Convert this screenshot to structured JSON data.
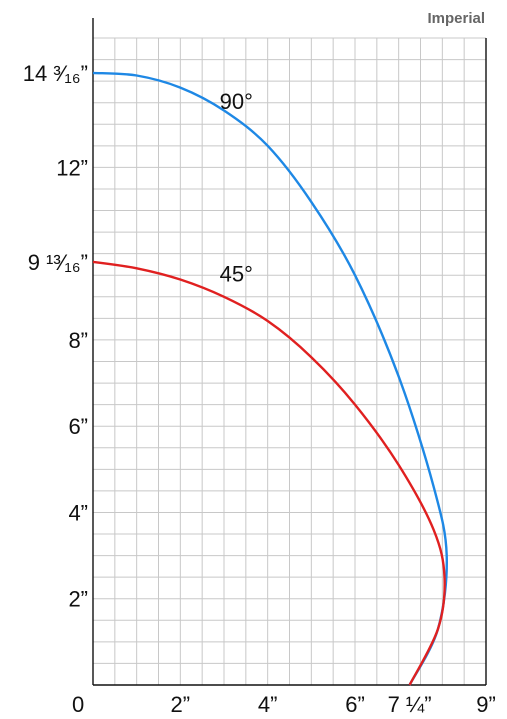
{
  "badge": "Imperial",
  "chart_data": {
    "type": "line",
    "title": "",
    "xlabel": "",
    "ylabel": "",
    "xlim": [
      0,
      9
    ],
    "ylim": [
      0,
      15
    ],
    "grid": true,
    "grid_step": 0.5,
    "x_ticks": [
      {
        "value": 0,
        "label": "0"
      },
      {
        "value": 2,
        "label": "2”"
      },
      {
        "value": 4,
        "label": "4”"
      },
      {
        "value": 6,
        "label": "6”"
      },
      {
        "value": 7.25,
        "label": "7 ¼”"
      },
      {
        "value": 9,
        "label": "9”"
      }
    ],
    "y_ticks": [
      {
        "value": 2,
        "label": "2”"
      },
      {
        "value": 4,
        "label": "4”"
      },
      {
        "value": 6,
        "label": "6”"
      },
      {
        "value": 8,
        "label": "8”"
      },
      {
        "value": 9.8125,
        "label": "9 ¹³⁄₁₆”"
      },
      {
        "value": 12,
        "label": "12”"
      },
      {
        "value": 14.1875,
        "label": "14 ³⁄₁₆”"
      }
    ],
    "series": [
      {
        "name": "",
        "label": "90°",
        "color": "#1e88e5",
        "label_at": [
          2.9,
          13.35
        ],
        "points": [
          [
            0,
            14.19
          ],
          [
            1,
            14.13
          ],
          [
            2,
            13.85
          ],
          [
            3,
            13.32
          ],
          [
            4,
            12.5
          ],
          [
            5,
            11.2
          ],
          [
            6,
            9.5
          ],
          [
            7,
            7.15
          ],
          [
            7.8,
            4.6
          ],
          [
            8.1,
            3.0
          ],
          [
            7.9,
            1.3
          ],
          [
            7.25,
            0
          ]
        ]
      },
      {
        "name": "",
        "label": "45°",
        "color": "#e02020",
        "label_at": [
          2.9,
          9.35
        ],
        "points": [
          [
            0,
            9.81
          ],
          [
            1,
            9.66
          ],
          [
            2,
            9.4
          ],
          [
            3,
            9.0
          ],
          [
            4,
            8.44
          ],
          [
            5,
            7.6
          ],
          [
            6,
            6.5
          ],
          [
            7,
            5.1
          ],
          [
            7.8,
            3.6
          ],
          [
            8.05,
            2.5
          ],
          [
            7.9,
            1.3
          ],
          [
            7.25,
            0
          ]
        ]
      }
    ]
  }
}
